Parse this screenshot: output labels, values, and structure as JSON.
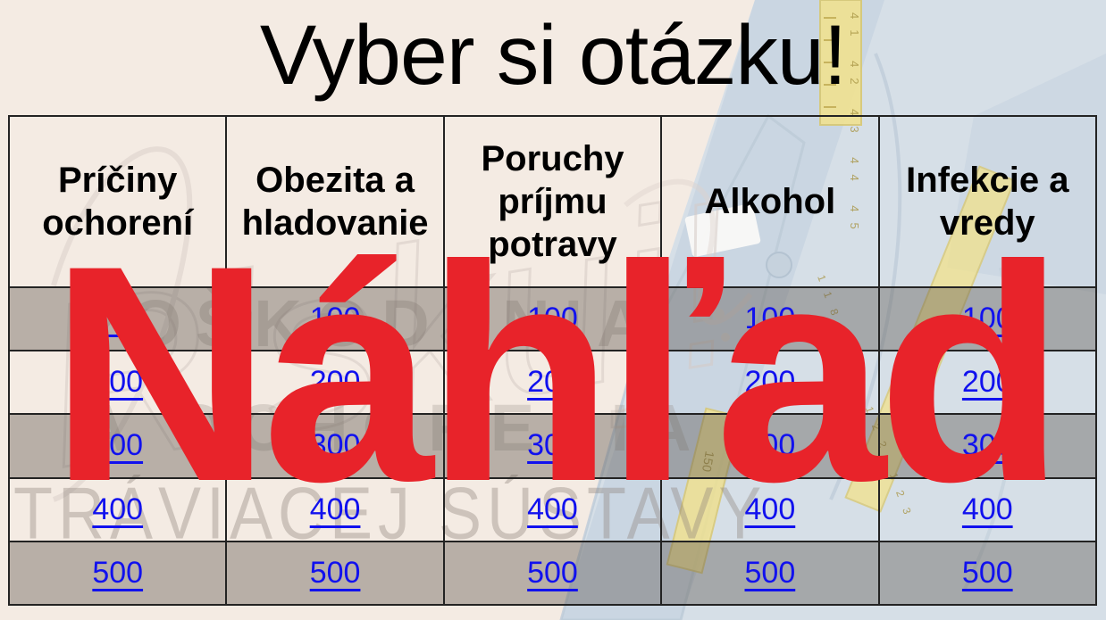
{
  "title": "Vyber si otázku!",
  "watermark": "Náhľad",
  "board": {
    "categories": [
      "Príčiny ochorení",
      "Obezita a hladovanie",
      "Poruchy príjmu potravy",
      "Alkohol",
      "Infekcie a vredy"
    ],
    "rows": [
      {
        "points": "100",
        "shaded": true
      },
      {
        "points": "200",
        "shaded": false
      },
      {
        "points": "300",
        "shaded": true
      },
      {
        "points": "400",
        "shaded": false
      },
      {
        "points": "500",
        "shaded": true
      }
    ],
    "columns": 5
  },
  "background": {
    "script_word": "Riskuj!",
    "faded_words": [
      "POŠKODENIA",
      "A OCHORENIA",
      "TRÁVIACEJ SÚSTAVY"
    ],
    "tape": {
      "top_numbers": "41 42 43 44 45",
      "middle_numbers": "118 119 122 123",
      "bottom_number": "150"
    }
  },
  "colors": {
    "slide_background": "#f4ebe3",
    "watermark_red": "#e8232a",
    "link_blue": "#1111ee",
    "shaded_row": "rgba(88,80,72,0.38)",
    "border": "#232323",
    "denim": "#d3dee8",
    "tape_yellow": "#f2e28c"
  }
}
